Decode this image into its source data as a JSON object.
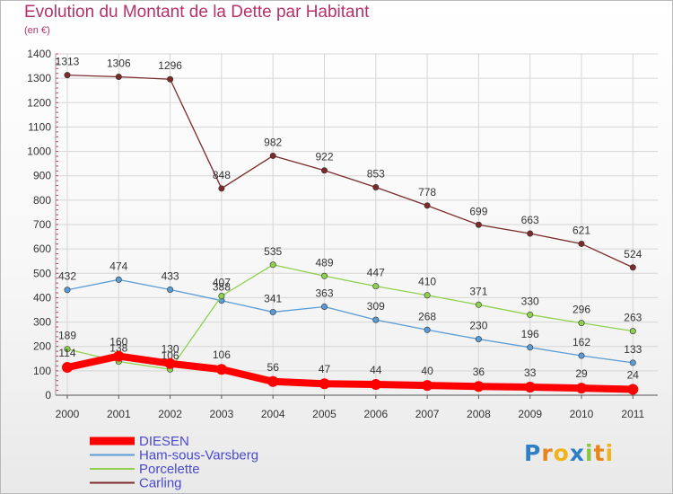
{
  "header": {
    "title": "Evolution du Montant de la Dette par Habitant",
    "subtitle": "(en €)"
  },
  "logo": {
    "text": "Proxiti",
    "letters": [
      "P",
      "r",
      "o",
      "x",
      "i",
      "t",
      "i"
    ],
    "colors": [
      "#2f7fc4",
      "#e8841c",
      "#f0b31c",
      "#2f7fc4",
      "#8bc53f",
      "#e8841c",
      "#f0b31c"
    ]
  },
  "chart_data": {
    "type": "line",
    "title": "Evolution du Montant de la Dette par Habitant",
    "subtitle": "(en €)",
    "x": [
      "2000",
      "2001",
      "2002",
      "2003",
      "2004",
      "2005",
      "2006",
      "2007",
      "2008",
      "2009",
      "2010",
      "2011"
    ],
    "ylim": [
      0,
      1400
    ],
    "yticks": [
      0,
      100,
      200,
      300,
      400,
      500,
      600,
      700,
      800,
      900,
      1000,
      1100,
      1200,
      1300,
      1400
    ],
    "grid": true,
    "legend_position": "bottom-left",
    "series": [
      {
        "name": "DIESEN",
        "color": "#ff0000",
        "values": [
          114,
          160,
          130,
          106,
          56,
          47,
          44,
          40,
          36,
          33,
          29,
          24
        ]
      },
      {
        "name": "Ham-sous-Varsberg",
        "color": "#5b9bd5",
        "values": [
          432,
          474,
          433,
          388,
          341,
          363,
          309,
          268,
          230,
          196,
          162,
          133
        ]
      },
      {
        "name": "Porcelette",
        "color": "#8fd14f",
        "values": [
          189,
          138,
          106,
          407,
          535,
          489,
          447,
          410,
          371,
          330,
          296,
          263
        ]
      },
      {
        "name": "Carling",
        "color": "#7b2b2b",
        "values": [
          1313,
          1306,
          1296,
          848,
          982,
          922,
          853,
          778,
          699,
          663,
          621,
          524
        ]
      }
    ]
  }
}
